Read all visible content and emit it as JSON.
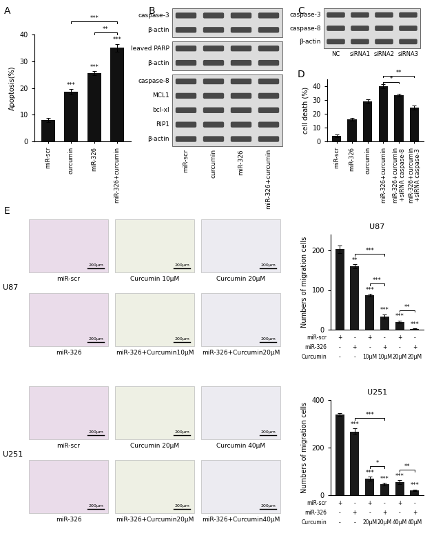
{
  "chart_data": [
    {
      "panel": "A",
      "type": "bar",
      "categories": [
        "miR-scr",
        "curcumin",
        "miR-326",
        "miR-326+curcumin"
      ],
      "values": [
        8,
        18.5,
        25.5,
        35
      ],
      "errors": [
        0.8,
        1,
        0.8,
        1.5
      ],
      "color": "#111111",
      "ylabel": "Apoptosis(%)",
      "ylim": [
        0,
        40
      ],
      "yticks": [
        0,
        10,
        20,
        30,
        40
      ],
      "annotations": {
        "bars": [
          null,
          "***",
          "***",
          "***"
        ],
        "comparisons": [
          {
            "from": 1,
            "to": 3,
            "label": "***"
          },
          {
            "from": 2,
            "to": 3,
            "label": "**"
          }
        ]
      }
    },
    {
      "panel": "D",
      "type": "bar",
      "categories": [
        "miR-scr",
        "miR-326",
        "curcumin",
        "miR-326+curcumin",
        "miR-326+curcumin\n+siRNA caspase-8",
        "miR-326+curcumin\n+siRNA caspase-3"
      ],
      "values": [
        4,
        16,
        29,
        40,
        33.5,
        24.5
      ],
      "errors": [
        0.8,
        1,
        1.5,
        1.5,
        1.2,
        1.5
      ],
      "color": "#111111",
      "ylabel": "cell death (%)",
      "ylim": [
        0,
        45
      ],
      "yticks": [
        0,
        10,
        20,
        30,
        40
      ],
      "annotations": {
        "bars": [
          null,
          null,
          null,
          null,
          null,
          null
        ],
        "comparisons": [
          {
            "from": 3,
            "to": 4,
            "label": "*"
          },
          {
            "from": 3,
            "to": 5,
            "label": "**"
          }
        ]
      }
    },
    {
      "type": "bar",
      "title": "U87",
      "categories": [
        null,
        null,
        null,
        null,
        null,
        null
      ],
      "values": [
        203,
        160,
        87,
        33,
        20,
        2
      ],
      "errors": [
        10,
        5,
        3,
        6,
        3,
        1
      ],
      "color": "#1a1a1a",
      "ylabel": "Numbers of migration cells",
      "ylim": [
        0,
        240
      ],
      "yticks": [
        0,
        100,
        200
      ],
      "tick_labels": "y",
      "x_table": [
        {
          "label": "miR-scr",
          "values": [
            "+",
            "-",
            "+",
            "-",
            "+",
            "-"
          ]
        },
        {
          "label": "miR-326",
          "values": [
            "-",
            "+",
            "-",
            "+",
            "-",
            "+"
          ]
        },
        {
          "label": "Curcumin",
          "values": [
            "-",
            "-",
            "10μM",
            "10μM",
            "20μM",
            "20μM"
          ]
        }
      ],
      "annotations": {
        "bars": [
          null,
          "**",
          "***",
          "***",
          "***",
          "***"
        ],
        "comparisons": [
          {
            "from": 1,
            "to": 3,
            "label": "***"
          },
          {
            "from": 2,
            "to": 3,
            "label": "***"
          },
          {
            "from": 4,
            "to": 5,
            "label": "**"
          }
        ]
      }
    },
    {
      "type": "bar",
      "title": "U251",
      "categories": [
        null,
        null,
        null,
        null,
        null,
        null
      ],
      "values": [
        340,
        268,
        70,
        47,
        55,
        20
      ],
      "errors": [
        6,
        12,
        8,
        5,
        8,
        4
      ],
      "color": "#1a1a1a",
      "ylabel": "Numbers of migration cells",
      "ylim": [
        0,
        400
      ],
      "yticks": [
        0,
        200,
        400
      ],
      "tick_labels": "y",
      "x_table": [
        {
          "label": "miR-scr",
          "values": [
            "+",
            "-",
            "+",
            "-",
            "+",
            "-"
          ]
        },
        {
          "label": "miR-326",
          "values": [
            "-",
            "+",
            "-",
            "+",
            "-",
            "+"
          ]
        },
        {
          "label": "Curcumin",
          "values": [
            "-",
            "-",
            "20μM",
            "20μM",
            "40μM",
            "40μM"
          ]
        }
      ],
      "annotations": {
        "bars": [
          null,
          "***",
          "***",
          "***",
          "***",
          "***"
        ],
        "comparisons": [
          {
            "from": 1,
            "to": 3,
            "label": "***"
          },
          {
            "from": 2,
            "to": 3,
            "label": "*"
          },
          {
            "from": 4,
            "to": 5,
            "label": "**"
          }
        ]
      }
    }
  ],
  "blots": [
    {
      "panel": "B",
      "lanes": [
        "miR-scr",
        "curcumin",
        "miR-326",
        "miR-326+curcumin"
      ],
      "groups": [
        [
          "caspase-3",
          "β-actin"
        ],
        [
          "cleaved PARP",
          "β-actin"
        ],
        [
          "caspase-8",
          "MCL1",
          "bcl-xl",
          "RIP1",
          "β-actin"
        ]
      ]
    },
    {
      "panel": "C",
      "lanes": [
        "NC",
        "siRNA1",
        "siRNA2",
        "siRNA3"
      ],
      "groups": [
        [
          "caspase-3",
          "caspase-8",
          "β-actin"
        ]
      ]
    }
  ],
  "micrographs": {
    "panel": "E",
    "scale_bar": "200μm",
    "groups": [
      {
        "name": "U87",
        "tiles": [
          [
            "miR-scr",
            "Curcumin 10μM",
            "Curcumin 20μM"
          ],
          [
            "miR-326",
            "miR-326+Curcumin10μM",
            "miR-326+Curcumin20μM"
          ]
        ]
      },
      {
        "name": "U251",
        "tiles": [
          [
            "miR-scr",
            "Curcumin 20μM",
            "Curcumin 40μM"
          ],
          [
            "miR-326",
            "miR-326+Curcumin20μM",
            "miR-326+Curcumin40μM"
          ]
        ]
      }
    ]
  }
}
